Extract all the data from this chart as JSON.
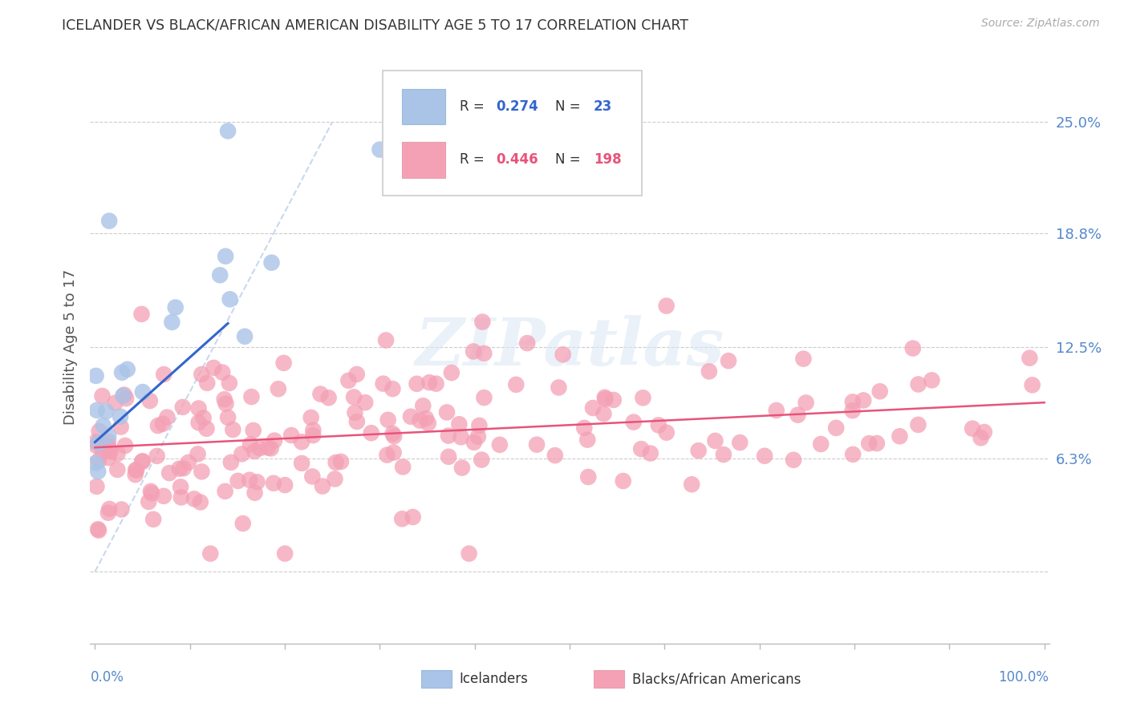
{
  "title": "ICELANDER VS BLACK/AFRICAN AMERICAN DISABILITY AGE 5 TO 17 CORRELATION CHART",
  "source": "Source: ZipAtlas.com",
  "ylabel": "Disability Age 5 to 17",
  "watermark": "ZIPatlas",
  "xlim": [
    0.0,
    1.0
  ],
  "ylim": [
    0.0,
    0.25
  ],
  "ytick_vals": [
    0.0,
    0.063,
    0.125,
    0.188,
    0.25
  ],
  "ytick_labels": [
    "",
    "6.3%",
    "12.5%",
    "18.8%",
    "25.0%"
  ],
  "grid_color": "#cccccc",
  "bg_color": "#ffffff",
  "icelander_color": "#aac4e8",
  "black_color": "#f4a0b5",
  "icelander_line_color": "#3366cc",
  "black_line_color": "#e8537a",
  "diag_line_color": "#c8d8f0",
  "title_color": "#333333",
  "source_color": "#aaaaaa",
  "axis_label_color": "#5588cc",
  "ylabel_color": "#555555",
  "legend_text_color": "#333333"
}
